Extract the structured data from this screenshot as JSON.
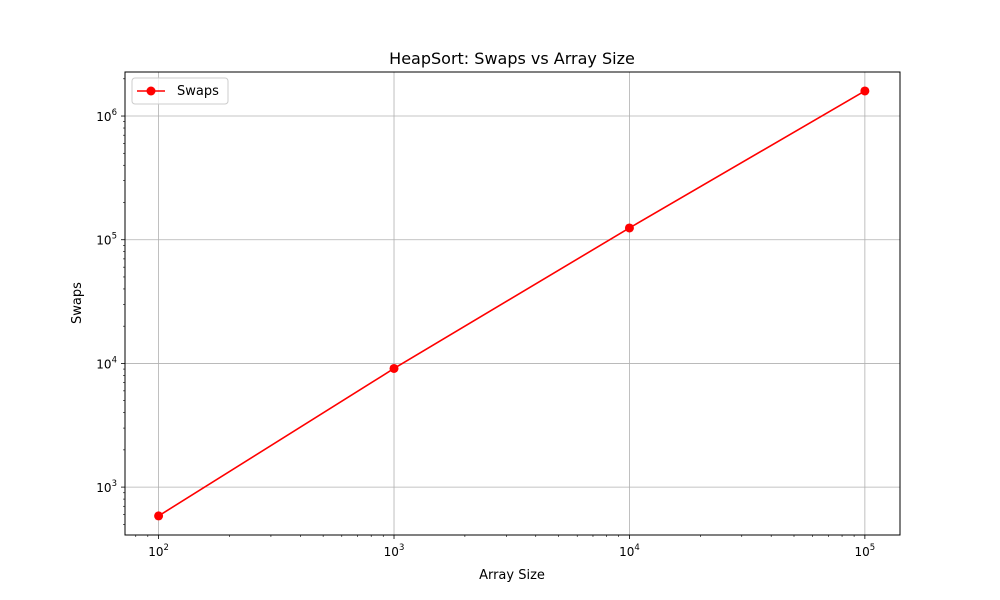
{
  "chart_data": {
    "type": "line",
    "title": "HeapSort: Swaps vs Array Size",
    "xlabel": "Array Size",
    "ylabel": "Swaps",
    "x_scale": "log",
    "y_scale": "log",
    "xlim": [
      72,
      141000
    ],
    "ylim": [
      410,
      2270000
    ],
    "grid": true,
    "legend_position": "top-left",
    "x_ticks": [
      {
        "value": 100,
        "base": "10",
        "exp": "2"
      },
      {
        "value": 1000,
        "base": "10",
        "exp": "3"
      },
      {
        "value": 10000,
        "base": "10",
        "exp": "4"
      },
      {
        "value": 100000,
        "base": "10",
        "exp": "5"
      }
    ],
    "y_ticks": [
      {
        "value": 1000,
        "base": "10",
        "exp": "3"
      },
      {
        "value": 10000,
        "base": "10",
        "exp": "4"
      },
      {
        "value": 100000,
        "base": "10",
        "exp": "5"
      },
      {
        "value": 1000000,
        "base": "10",
        "exp": "6"
      }
    ],
    "series": [
      {
        "name": "Swaps",
        "color": "#ff0000",
        "x": [
          100,
          1000,
          10000,
          100000
        ],
        "y": [
          585,
          9100,
          124500,
          1595000
        ]
      }
    ]
  }
}
